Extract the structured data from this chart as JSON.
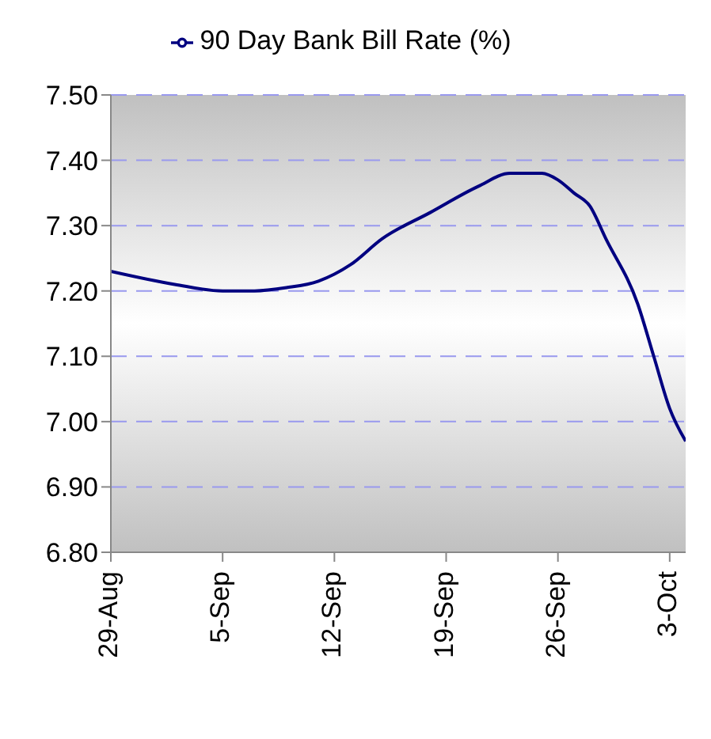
{
  "chart_data": {
    "type": "line",
    "x": [
      "--08-29",
      "--09-02",
      "--09-05",
      "--09-07",
      "--09-09",
      "--09-11",
      "--09-13",
      "--09-15",
      "--09-18",
      "--09-21",
      "--09-23",
      "--09-25",
      "--09-26",
      "--09-27",
      "--09-28",
      "--09-29",
      "--10-01",
      "--10-02",
      "--10-03",
      "--10-04"
    ],
    "series": [
      {
        "name": "90 Day Bank Bill Rate (%)",
        "color": "#000080",
        "values": [
          7.23,
          7.21,
          7.2,
          7.2,
          7.205,
          7.215,
          7.24,
          7.28,
          7.32,
          7.36,
          7.38,
          7.38,
          7.37,
          7.35,
          7.33,
          7.28,
          7.18,
          7.1,
          7.02,
          6.97
        ]
      }
    ],
    "xlim": [
      "--08-29",
      "--10-04"
    ],
    "xticks": [
      {
        "value": "--08-29",
        "label": "29-Aug"
      },
      {
        "value": "--09-05",
        "label": "5-Sep"
      },
      {
        "value": "--09-12",
        "label": "12-Sep"
      },
      {
        "value": "--09-19",
        "label": "19-Sep"
      },
      {
        "value": "--09-26",
        "label": "26-Sep"
      },
      {
        "value": "--10-03",
        "label": "3-Oct"
      }
    ],
    "ylim": [
      6.8,
      7.5
    ],
    "yticks": [
      {
        "value": 6.8,
        "label": "6.80"
      },
      {
        "value": 6.9,
        "label": "6.90"
      },
      {
        "value": 7,
        "label": "7.00"
      },
      {
        "value": 7.1,
        "label": "7.10"
      },
      {
        "value": 7.2,
        "label": "7.20"
      },
      {
        "value": 7.3,
        "label": "7.30"
      },
      {
        "value": 7.4,
        "label": "7.40"
      },
      {
        "value": 7.5,
        "label": "7.50"
      }
    ],
    "grid": "y",
    "legend": "top",
    "marker": "none",
    "line_style": "solid"
  }
}
